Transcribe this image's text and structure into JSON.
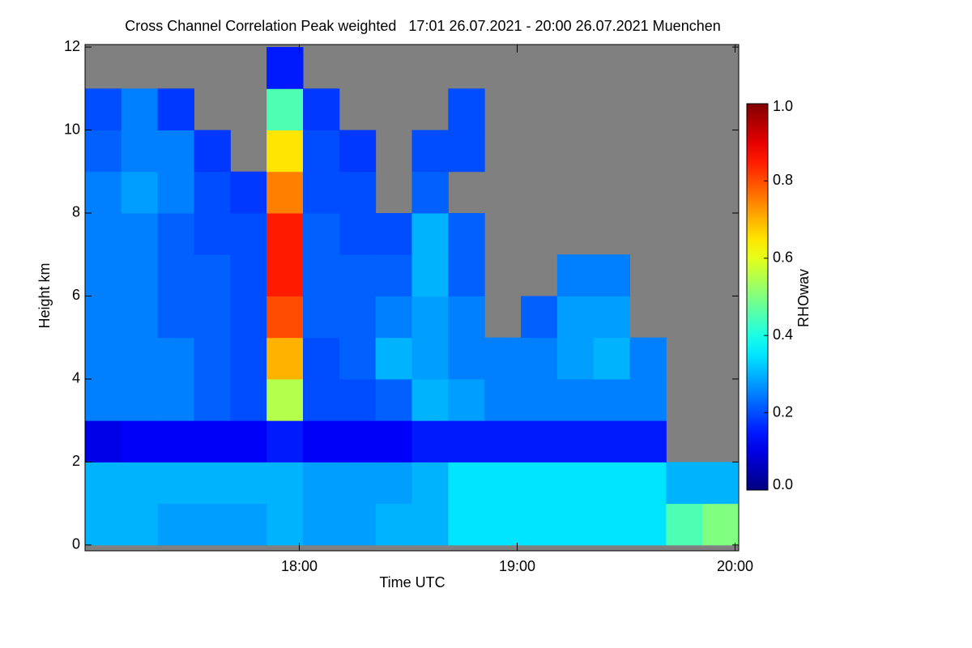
{
  "chart_data": {
    "type": "heatmap",
    "title": "Cross Channel Correlation Peak weighted   17:01 26.07.2021 - 20:00 26.07.2021 Muenchen",
    "x_label": "Time UTC",
    "y_label": "Height km",
    "colorbar_label": "RHOwav",
    "colormap": "jet",
    "nodata_color": "#808080",
    "xlim": [
      17.0167,
      20.0167
    ],
    "ylim": [
      -0.14,
      12.06
    ],
    "clim": [
      0,
      1.0
    ],
    "xticks": [
      {
        "value": 18,
        "label": "18:00"
      },
      {
        "value": 19,
        "label": "19:00"
      },
      {
        "value": 20,
        "label": "20:00"
      }
    ],
    "yticks": [
      0,
      2,
      4,
      6,
      8,
      10,
      12
    ],
    "cticks": [
      {
        "value": 0,
        "label": "0.0"
      },
      {
        "value": 0.2,
        "label": "0.2"
      },
      {
        "value": 0.4,
        "label": "0.4"
      },
      {
        "value": 0.6,
        "label": "0.6"
      },
      {
        "value": 0.8,
        "label": "0.8"
      },
      {
        "value": 1.0,
        "label": "1.0"
      }
    ],
    "x_bins": [
      17.0167,
      17.1833,
      17.35,
      17.5167,
      17.6833,
      17.85,
      18.0167,
      18.1833,
      18.35,
      18.5167,
      18.6833,
      18.85,
      19.0167,
      19.1833,
      19.35,
      19.5167,
      19.6833,
      19.85,
      20.0167
    ],
    "y_bins": [
      0,
      1,
      2,
      3,
      4,
      5,
      6,
      7,
      8,
      9,
      10,
      11,
      12
    ],
    "z": [
      [
        0.3,
        0.3,
        0.28,
        0.28,
        0.28,
        0.3,
        0.28,
        0.28,
        0.3,
        0.3,
        0.35,
        0.35,
        0.35,
        0.35,
        0.35,
        0.35,
        0.45,
        0.5
      ],
      [
        0.3,
        0.3,
        0.3,
        0.3,
        0.3,
        0.3,
        0.28,
        0.28,
        0.28,
        0.3,
        0.35,
        0.35,
        0.35,
        0.35,
        0.35,
        0.35,
        0.3,
        0.3
      ],
      [
        0.1,
        0.12,
        0.12,
        0.12,
        0.12,
        0.15,
        0.12,
        0.12,
        0.12,
        0.15,
        0.15,
        0.15,
        0.15,
        0.15,
        0.15,
        0.15,
        null,
        null
      ],
      [
        0.25,
        0.25,
        0.25,
        0.22,
        0.2,
        0.55,
        0.2,
        0.2,
        0.22,
        0.3,
        0.28,
        0.25,
        0.25,
        0.25,
        0.25,
        0.25,
        null,
        null
      ],
      [
        0.25,
        0.25,
        0.25,
        0.22,
        0.2,
        0.7,
        0.2,
        0.22,
        0.3,
        0.28,
        0.25,
        0.25,
        0.25,
        0.28,
        0.3,
        0.25,
        null,
        null
      ],
      [
        0.25,
        0.25,
        0.22,
        0.22,
        0.2,
        0.8,
        0.22,
        0.22,
        0.25,
        0.28,
        0.25,
        null,
        0.22,
        0.28,
        0.28,
        null,
        null,
        null
      ],
      [
        0.25,
        0.25,
        0.22,
        0.22,
        0.2,
        0.85,
        0.22,
        0.22,
        0.22,
        0.3,
        0.22,
        null,
        null,
        0.25,
        0.25,
        null,
        null,
        null
      ],
      [
        0.25,
        0.25,
        0.22,
        0.2,
        0.2,
        0.85,
        0.22,
        0.2,
        0.2,
        0.3,
        0.22,
        null,
        null,
        null,
        null,
        null,
        null,
        null
      ],
      [
        0.25,
        0.28,
        0.25,
        0.2,
        0.18,
        0.75,
        0.2,
        0.2,
        null,
        0.22,
        null,
        null,
        null,
        null,
        null,
        null,
        null,
        null
      ],
      [
        0.22,
        0.25,
        0.25,
        0.18,
        null,
        0.65,
        0.2,
        0.18,
        null,
        0.2,
        0.2,
        null,
        null,
        null,
        null,
        null,
        null,
        null
      ],
      [
        0.2,
        0.25,
        0.18,
        null,
        null,
        0.45,
        0.18,
        null,
        null,
        null,
        0.2,
        null,
        null,
        null,
        null,
        null,
        null,
        null
      ],
      [
        null,
        null,
        null,
        null,
        null,
        0.15,
        null,
        null,
        null,
        null,
        null,
        null,
        null,
        null,
        null,
        null,
        null,
        null
      ]
    ]
  }
}
